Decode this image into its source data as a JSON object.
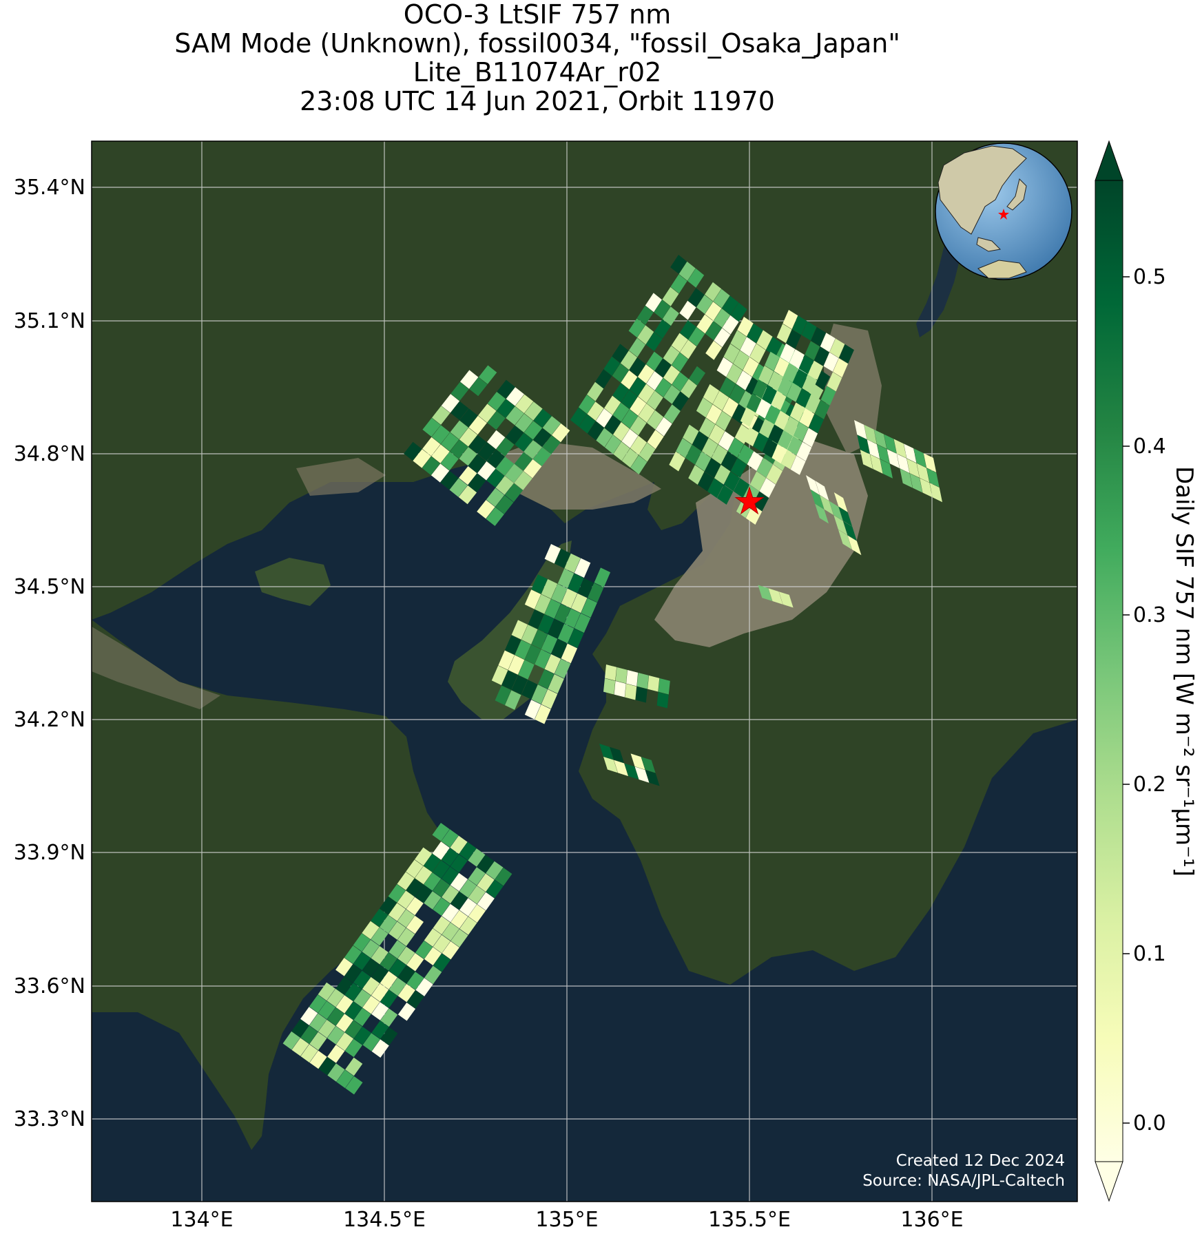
{
  "title": {
    "line1": "OCO-3 LtSIF 757 nm",
    "line2": "SAM Mode (Unknown), fossil0034, \"fossil_Osaka_Japan\"",
    "line3": "Lite_B11074Ar_r02",
    "line4": "23:08 UTC 14 Jun 2021, Orbit 11970"
  },
  "axes": {
    "lon_ticks": [
      "134°E",
      "134.5°E",
      "135°E",
      "135.5°E",
      "136°E"
    ],
    "lat_ticks": [
      "35.4°N",
      "35.1°N",
      "34.8°N",
      "34.5°N",
      "34.2°N",
      "33.9°N",
      "33.6°N",
      "33.3°N"
    ],
    "lon_range": [
      133.7,
      136.4
    ],
    "lat_range": [
      33.1,
      35.5
    ]
  },
  "colorbar": {
    "label": "Daily SIF 757 nm [W m⁻² sr⁻¹µm⁻¹]",
    "ticks": [
      "0.0",
      "0.1",
      "0.2",
      "0.3",
      "0.4",
      "0.5"
    ],
    "range": [
      -0.03,
      0.55
    ],
    "colormap": "YlGn",
    "extend": "both"
  },
  "target": {
    "name": "fossil_Osaka_Japan",
    "lon": 135.5,
    "lat": 34.69,
    "marker_color": "#ff0000"
  },
  "credits": {
    "line1": "Created 12 Dec 2024",
    "line2": "Source: NASA/JPL-Caltech"
  },
  "inset": {
    "type": "globe-locator",
    "marker_color": "#ff0000"
  },
  "colors": {
    "ocean": "#14283a",
    "land": "#2f4426",
    "urban": "#8a8470",
    "grid": "#d8d8d8"
  }
}
